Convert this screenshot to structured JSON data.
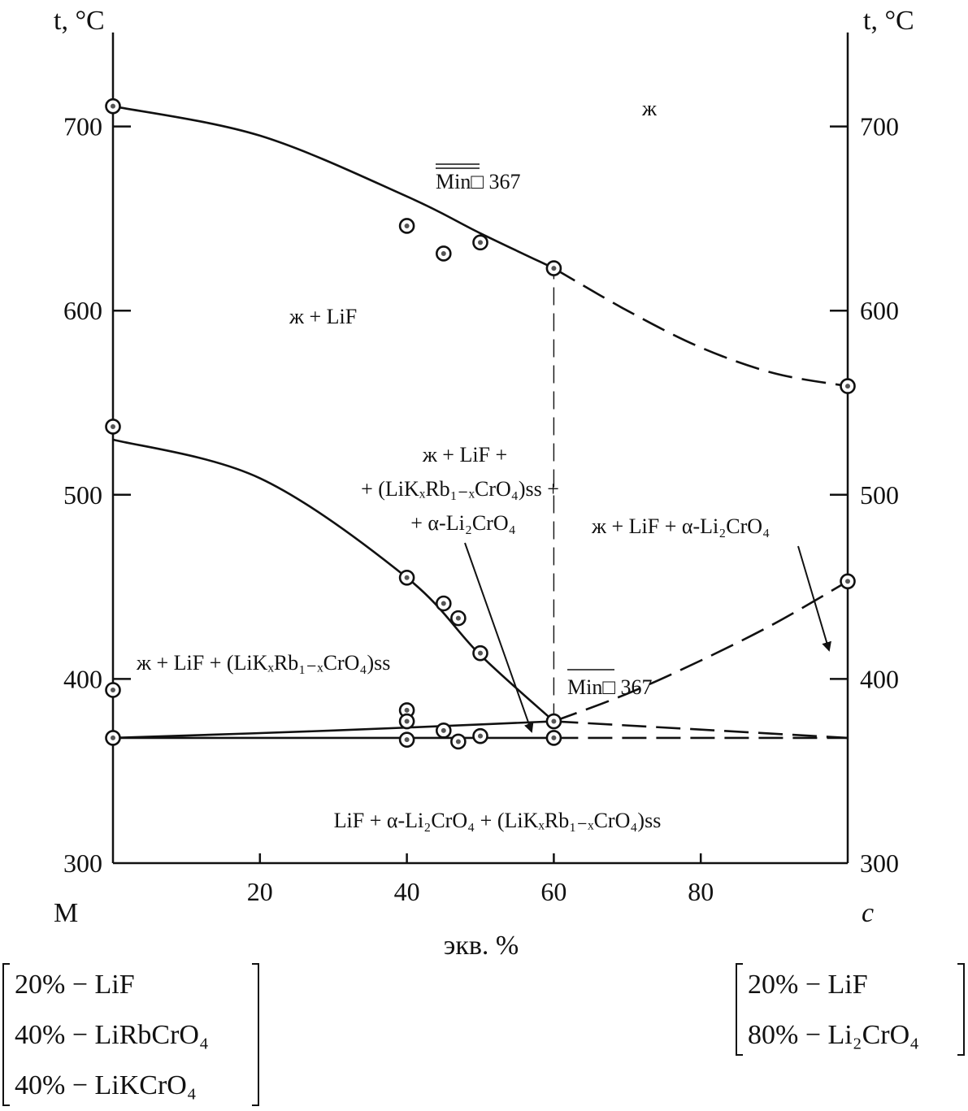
{
  "chart_data": {
    "type": "scatter",
    "title": "",
    "xlabel": "экв. %",
    "ylabel": "t, °C",
    "ylabel_right": "t, °C",
    "xlim": [
      0,
      100
    ],
    "ylim": [
      300,
      760
    ],
    "x_ticks": [
      20,
      40,
      60,
      80
    ],
    "y_ticks": [
      300,
      400,
      500,
      600,
      700
    ],
    "grid": false,
    "x_end_labels": {
      "left": "M",
      "right": "c"
    },
    "series": [
      {
        "kind": "solid",
        "points": [
          [
            0,
            711
          ],
          [
            20,
            695
          ],
          [
            40,
            662
          ],
          [
            50,
            642
          ],
          [
            60,
            623
          ]
        ]
      },
      {
        "kind": "dashed",
        "points": [
          [
            60,
            623
          ],
          [
            70,
            600
          ],
          [
            80,
            580
          ],
          [
            90,
            566
          ],
          [
            100,
            559
          ]
        ]
      },
      {
        "kind": "solid",
        "points": [
          [
            0,
            530
          ],
          [
            20,
            509
          ],
          [
            40,
            455
          ],
          [
            50,
            413
          ],
          [
            60,
            377
          ]
        ]
      },
      {
        "kind": "dashed",
        "points": [
          [
            60,
            377
          ],
          [
            70,
            392
          ],
          [
            80,
            410
          ],
          [
            90,
            430
          ],
          [
            100,
            453
          ]
        ]
      },
      {
        "kind": "solid",
        "points": [
          [
            0,
            368
          ],
          [
            30,
            372
          ],
          [
            60,
            377
          ]
        ]
      },
      {
        "kind": "dashed",
        "points": [
          [
            60,
            377
          ],
          [
            100,
            368
          ]
        ]
      },
      {
        "kind": "solid",
        "points": [
          [
            0,
            368
          ],
          [
            60,
            368
          ]
        ]
      },
      {
        "kind": "dashed",
        "points": [
          [
            60,
            368
          ],
          [
            100,
            368
          ]
        ]
      },
      {
        "kind": "vertical-dashed",
        "points": [
          [
            60,
            377
          ],
          [
            60,
            623
          ]
        ]
      }
    ],
    "experimental_points": [
      [
        0,
        711
      ],
      [
        0,
        537
      ],
      [
        0,
        394
      ],
      [
        0,
        368
      ],
      [
        40,
        646
      ],
      [
        45,
        631
      ],
      [
        50,
        637
      ],
      [
        60,
        623
      ],
      [
        40,
        455
      ],
      [
        45,
        441
      ],
      [
        47,
        433
      ],
      [
        50,
        414
      ],
      [
        40,
        383
      ],
      [
        40,
        377
      ],
      [
        40,
        367
      ],
      [
        45,
        372
      ],
      [
        47,
        366
      ],
      [
        50,
        369
      ],
      [
        60,
        377
      ],
      [
        60,
        368
      ],
      [
        100,
        559
      ],
      [
        100,
        453
      ]
    ],
    "annotations": [
      {
        "id": "liquid",
        "text": "ж"
      },
      {
        "id": "min-upper",
        "text": "Min□ 367"
      },
      {
        "id": "liq-lif",
        "text": "ж + LiF"
      },
      {
        "id": "four-phase-1",
        "text": "ж + LiF +"
      },
      {
        "id": "four-phase-2",
        "text": "+ (LiKₓRb₁₋ₓCrO₄)ss +"
      },
      {
        "id": "four-phase-3",
        "text": "+ α-Li₂CrO₄"
      },
      {
        "id": "liq-lif-chromate",
        "text": "ж + LiF + α-Li₂CrO₄"
      },
      {
        "id": "liq-lif-ss",
        "text": "ж + LiF + (LiKₓRb₁₋ₓCrO₄)ss"
      },
      {
        "id": "min-lower",
        "text": "Min□ 367"
      },
      {
        "id": "solid-region",
        "text": "LiF + α-Li₂CrO₄ + (LiKₓRb₁₋ₓCrO₄)ss"
      }
    ],
    "compositions": {
      "left": [
        "20% − LiF",
        "40% − LiRbCrO₄",
        "40% − LiKCrO₄"
      ],
      "right": [
        "20% − LiF",
        "80% − Li₂CrO₄"
      ]
    }
  }
}
